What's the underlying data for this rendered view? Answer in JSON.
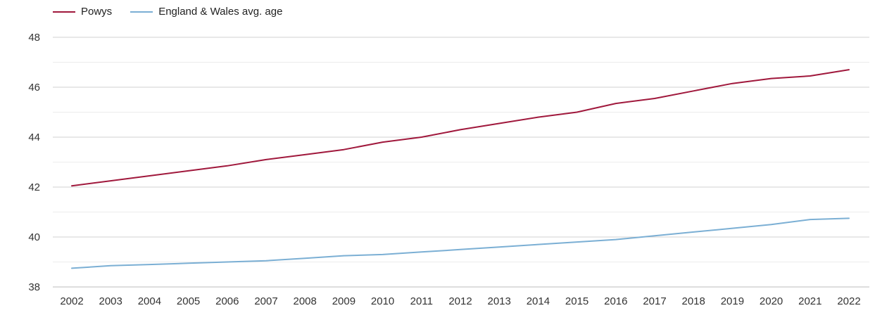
{
  "chart_data": {
    "type": "line",
    "title": "",
    "xlabel": "",
    "ylabel": "",
    "x": [
      "2002",
      "2003",
      "2004",
      "2005",
      "2006",
      "2007",
      "2008",
      "2009",
      "2010",
      "2011",
      "2012",
      "2013",
      "2014",
      "2015",
      "2016",
      "2017",
      "2018",
      "2019",
      "2020",
      "2021",
      "2022"
    ],
    "ylim": [
      38,
      48
    ],
    "yticks": [
      38,
      40,
      42,
      44,
      46,
      48
    ],
    "grid": true,
    "legend_position": "top-left",
    "series": [
      {
        "name": "Powys",
        "color": "#a0183c",
        "values": [
          42.05,
          42.25,
          42.45,
          42.65,
          42.85,
          43.1,
          43.3,
          43.5,
          43.8,
          44.0,
          44.3,
          44.55,
          44.8,
          45.0,
          45.35,
          45.55,
          45.85,
          46.15,
          46.35,
          46.45,
          46.7
        ]
      },
      {
        "name": "England & Wales avg. age",
        "color": "#7bafd4",
        "values": [
          38.75,
          38.85,
          38.9,
          38.95,
          39.0,
          39.05,
          39.15,
          39.25,
          39.3,
          39.4,
          39.5,
          39.6,
          39.7,
          39.8,
          39.9,
          40.05,
          40.2,
          40.35,
          40.5,
          40.7,
          40.75
        ]
      }
    ]
  }
}
